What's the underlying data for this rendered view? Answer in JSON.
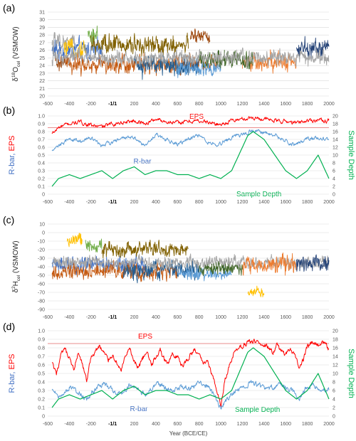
{
  "chart_data": [
    {
      "type": "line",
      "panel_label": "(a)",
      "ylabel": "δ18Ocel (VSMOW)",
      "ylabel_parts": {
        "delta": "δ",
        "sup": "18",
        "main": "O",
        "sub": "cel",
        "unit": " (VSMOW)"
      },
      "ylim": [
        20,
        31
      ],
      "yticks": [
        "20",
        "21",
        "22",
        "23",
        "24",
        "25",
        "26",
        "27",
        "28",
        "29",
        "30",
        "31"
      ],
      "xlim": [
        -600,
        2000
      ],
      "xtick_labels": [
        "-600",
        "-400",
        "-200",
        "-1/1",
        "200",
        "400",
        "600",
        "800",
        "1000",
        "1200",
        "1400",
        "1600",
        "1800",
        "2000"
      ],
      "grid": true,
      "series": [
        {
          "color": "#4472c4",
          "x": [
            -560,
            -100
          ],
          "y_mean": 26.0,
          "y_amp": 1.7
        },
        {
          "color": "#a5a5a5",
          "x": [
            -560,
            -350
          ],
          "y_mean": 27.0,
          "y_amp": 1.5
        },
        {
          "color": "#ffc000",
          "x": [
            -450,
            -250
          ],
          "y_mean": 26.2,
          "y_amp": 1.4
        },
        {
          "color": "#9e480e",
          "x": [
            -530,
            -400
          ],
          "y_mean": 24.3,
          "y_amp": 1.2
        },
        {
          "color": "#70ad47",
          "x": [
            -230,
            -140
          ],
          "y_mean": 28.0,
          "y_amp": 1.6
        },
        {
          "color": "#c55a11",
          "x": [
            -430,
            1000
          ],
          "y_mean": 24.2,
          "y_amp": 1.5
        },
        {
          "color": "#806000",
          "x": [
            -200,
            700
          ],
          "y_mean": 26.6,
          "y_amp": 1.6
        },
        {
          "color": "#255e91",
          "x": [
            200,
            800
          ],
          "y_mean": 24.0,
          "y_amp": 1.7
        },
        {
          "color": "#5b9bd5",
          "x": [
            600,
            1000
          ],
          "y_mean": 23.7,
          "y_amp": 1.3
        },
        {
          "color": "#9e480e",
          "x": [
            720,
            900
          ],
          "y_mean": 28.0,
          "y_amp": 1.2
        },
        {
          "color": "#ed7d31",
          "x": [
            1200,
            1700
          ],
          "y_mean": 24.5,
          "y_amp": 1.4
        },
        {
          "color": "#264478",
          "x": [
            1700,
            2000
          ],
          "y_mean": 26.2,
          "y_amp": 1.6
        },
        {
          "color": "#43682b",
          "x": [
            800,
            1300
          ],
          "y_mean": 24.7,
          "y_amp": 1.5
        },
        {
          "color": "#a5a5a5",
          "x": [
            -560,
            2000
          ],
          "y_mean": 25.0,
          "y_amp": 1.2
        }
      ]
    },
    {
      "type": "line",
      "panel_label": "(b)",
      "ylabel_left_parts": [
        "R-bar",
        ", ",
        "EPS"
      ],
      "ylabel_right": "Sample Depth",
      "ylim_left": [
        0,
        1
      ],
      "ylim_right": [
        0,
        20
      ],
      "yticks_left": [
        "0",
        "0.1",
        "0.2",
        "0.3",
        "0.4",
        "0.5",
        "0.6",
        "0.7",
        "0.8",
        "0.9",
        "1.0"
      ],
      "yticks_right": [
        "0",
        "2",
        "4",
        "6",
        "8",
        "10",
        "12",
        "14",
        "16",
        "18",
        "20"
      ],
      "xlim": [
        -600,
        2000
      ],
      "xtick_labels": [
        "-600",
        "-400",
        "-200",
        "-1/1",
        "200",
        "400",
        "600",
        "800",
        "1000",
        "1200",
        "1400",
        "1600",
        "1800",
        "2000"
      ],
      "threshold": 0.85,
      "annotations": [
        "EPS",
        "R-bar",
        "Sample Depth"
      ],
      "series": [
        {
          "name": "EPS",
          "color": "#ff0000",
          "axis": "left",
          "x": [
            -560,
            -500,
            -400,
            -300,
            -200,
            -100,
            0,
            100,
            200,
            300,
            400,
            500,
            600,
            700,
            800,
            900,
            1000,
            1100,
            1200,
            1300,
            1400,
            1500,
            1600,
            1700,
            1800,
            1900,
            2000
          ],
          "y": [
            0.77,
            0.85,
            0.9,
            0.92,
            0.88,
            0.86,
            0.9,
            0.92,
            0.94,
            0.9,
            0.96,
            0.93,
            0.91,
            0.93,
            0.94,
            0.91,
            0.89,
            0.94,
            0.96,
            0.98,
            0.96,
            0.94,
            0.93,
            0.91,
            0.94,
            0.95,
            0.94
          ]
        },
        {
          "name": "R-bar",
          "color": "#5b9bd5",
          "axis": "left",
          "x": [
            -560,
            -500,
            -400,
            -300,
            -200,
            -100,
            0,
            100,
            200,
            300,
            400,
            500,
            600,
            700,
            800,
            900,
            1000,
            1100,
            1200,
            1300,
            1400,
            1500,
            1600,
            1700,
            1800,
            1900,
            2000
          ],
          "y": [
            0.55,
            0.62,
            0.7,
            0.68,
            0.72,
            0.62,
            0.66,
            0.73,
            0.72,
            0.61,
            0.76,
            0.7,
            0.64,
            0.71,
            0.74,
            0.65,
            0.64,
            0.72,
            0.76,
            0.82,
            0.79,
            0.76,
            0.68,
            0.63,
            0.72,
            0.72,
            0.7
          ]
        },
        {
          "name": "Sample Depth",
          "color": "#00b050",
          "axis": "right",
          "x": [
            -560,
            -500,
            -400,
            -300,
            -200,
            -100,
            0,
            100,
            200,
            300,
            400,
            500,
            600,
            700,
            800,
            900,
            1000,
            1100,
            1200,
            1250,
            1300,
            1400,
            1500,
            1600,
            1700,
            1800,
            1900,
            2000
          ],
          "y": [
            2,
            4,
            5,
            4,
            5,
            6,
            4,
            6,
            7,
            5,
            6,
            6,
            5,
            5,
            4,
            5,
            4,
            6,
            12,
            15,
            16,
            14,
            10,
            6,
            4,
            6,
            10,
            4
          ]
        }
      ]
    },
    {
      "type": "line",
      "panel_label": "(c)",
      "ylabel_parts": {
        "delta": "δ",
        "sup": "2",
        "main": "H",
        "sub": "cel",
        "unit": " (VSMOW)"
      },
      "ylim": [
        -90,
        10
      ],
      "yticks": [
        "-90",
        "-80",
        "-70",
        "-60",
        "-50",
        "-40",
        "-30",
        "-20",
        "-10",
        "0",
        "10"
      ],
      "xlim": [
        -600,
        2000
      ],
      "xtick_labels": [
        "-600",
        "-400",
        "-200",
        "-1/1",
        "200",
        "400",
        "600",
        "800",
        "1000",
        "1200",
        "1400",
        "1600",
        "1800",
        "2000"
      ],
      "grid": true,
      "series": [
        {
          "color": "#4472c4",
          "x": [
            -560,
            300
          ],
          "y_mean": -38,
          "y_amp": 12
        },
        {
          "color": "#ffc000",
          "x": [
            -420,
            -280
          ],
          "y_mean": -10,
          "y_amp": 10
        },
        {
          "color": "#70ad47",
          "x": [
            -250,
            -100
          ],
          "y_mean": -15,
          "y_amp": 9
        },
        {
          "color": "#c55a11",
          "x": [
            -560,
            600
          ],
          "y_mean": -45,
          "y_amp": 12
        },
        {
          "color": "#806000",
          "x": [
            -100,
            700
          ],
          "y_mean": -20,
          "y_amp": 10
        },
        {
          "color": "#255e91",
          "x": [
            100,
            800
          ],
          "y_mean": -45,
          "y_amp": 13
        },
        {
          "color": "#5b9bd5",
          "x": [
            600,
            1100
          ],
          "y_mean": -48,
          "y_amp": 10
        },
        {
          "color": "#a5a5a5",
          "x": [
            -560,
            2000
          ],
          "y_mean": -35,
          "y_amp": 9
        },
        {
          "color": "#ffc000",
          "x": [
            1250,
            1400
          ],
          "y_mean": -70,
          "y_amp": 8
        },
        {
          "color": "#ed7d31",
          "x": [
            1200,
            1700
          ],
          "y_mean": -38,
          "y_amp": 12
        },
        {
          "color": "#43682b",
          "x": [
            800,
            1200
          ],
          "y_mean": -42,
          "y_amp": 9
        },
        {
          "color": "#264478",
          "x": [
            1700,
            2000
          ],
          "y_mean": -35,
          "y_amp": 12
        }
      ]
    },
    {
      "type": "line",
      "panel_label": "(d)",
      "ylabel_left_parts": [
        "R-bar",
        ", ",
        "EPS"
      ],
      "ylabel_right": "Sample Depth",
      "xlabel": "Year (BCE/CE)",
      "ylim_left": [
        0,
        1
      ],
      "ylim_right": [
        0,
        20
      ],
      "yticks_left": [
        "0",
        "0.1",
        "0.2",
        "0.3",
        "0.4",
        "0.5",
        "0.6",
        "0.7",
        "0.8",
        "0.9",
        "1.0"
      ],
      "yticks_right": [
        "0",
        "2",
        "4",
        "6",
        "8",
        "10",
        "12",
        "14",
        "16",
        "18",
        "20"
      ],
      "xlim": [
        -600,
        2000
      ],
      "xtick_labels": [
        "-600",
        "-400",
        "-200",
        "-1/1",
        "200",
        "400",
        "600",
        "800",
        "1000",
        "1200",
        "1400",
        "1600",
        "1800",
        "2000"
      ],
      "threshold": 0.85,
      "annotations": [
        "EPS",
        "R-bar",
        "Sample Depth"
      ],
      "series": [
        {
          "name": "EPS",
          "color": "#ff0000",
          "axis": "left",
          "x": [
            -560,
            -520,
            -480,
            -440,
            -400,
            -360,
            -320,
            -280,
            -240,
            -200,
            -160,
            -120,
            -80,
            -40,
            0,
            40,
            80,
            120,
            160,
            200,
            240,
            280,
            320,
            360,
            400,
            440,
            480,
            520,
            560,
            600,
            640,
            680,
            720,
            760,
            800,
            840,
            880,
            920,
            960,
            1000,
            1040,
            1080,
            1120,
            1160,
            1200,
            1240,
            1280,
            1320,
            1360,
            1400,
            1440,
            1480,
            1520,
            1560,
            1600,
            1640,
            1680,
            1720,
            1760,
            1800,
            1840,
            1880,
            1920,
            1960,
            2000
          ],
          "y": [
            0.62,
            0.48,
            0.7,
            0.78,
            0.66,
            0.55,
            0.72,
            0.6,
            0.42,
            0.68,
            0.76,
            0.82,
            0.74,
            0.66,
            0.72,
            0.62,
            0.54,
            0.7,
            0.78,
            0.64,
            0.56,
            0.68,
            0.74,
            0.6,
            0.7,
            0.78,
            0.66,
            0.62,
            0.74,
            0.7,
            0.58,
            0.64,
            0.72,
            0.78,
            0.7,
            0.62,
            0.66,
            0.48,
            0.32,
            0.14,
            0.42,
            0.58,
            0.72,
            0.78,
            0.82,
            0.86,
            0.88,
            0.86,
            0.88,
            0.84,
            0.8,
            0.74,
            0.82,
            0.76,
            0.72,
            0.8,
            0.74,
            0.58,
            0.66,
            0.8,
            0.86,
            0.84,
            0.82,
            0.86,
            0.78
          ]
        },
        {
          "name": "R-bar",
          "color": "#5b9bd5",
          "axis": "left",
          "x": [
            -560,
            -480,
            -400,
            -320,
            -240,
            -160,
            -80,
            0,
            80,
            160,
            240,
            320,
            400,
            480,
            560,
            640,
            720,
            800,
            880,
            960,
            1000,
            1040,
            1120,
            1200,
            1280,
            1360,
            1440,
            1520,
            1600,
            1680,
            1720,
            1760,
            1840,
            1920,
            2000
          ],
          "y": [
            0.3,
            0.22,
            0.34,
            0.28,
            0.2,
            0.32,
            0.38,
            0.3,
            0.26,
            0.36,
            0.3,
            0.26,
            0.38,
            0.34,
            0.28,
            0.36,
            0.32,
            0.4,
            0.34,
            0.2,
            0.1,
            0.18,
            0.26,
            0.34,
            0.4,
            0.36,
            0.3,
            0.38,
            0.34,
            0.28,
            0.18,
            0.3,
            0.36,
            0.34,
            0.3
          ]
        },
        {
          "name": "Sample Depth",
          "color": "#00b050",
          "axis": "right",
          "x": [
            -560,
            -500,
            -400,
            -300,
            -200,
            -100,
            0,
            100,
            200,
            300,
            400,
            500,
            600,
            700,
            800,
            900,
            1000,
            1100,
            1200,
            1250,
            1300,
            1400,
            1500,
            1600,
            1700,
            1800,
            1900,
            2000
          ],
          "y": [
            2,
            4,
            5,
            4,
            5,
            6,
            4,
            6,
            7,
            5,
            6,
            6,
            5,
            5,
            4,
            5,
            4,
            6,
            12,
            15,
            16,
            14,
            10,
            6,
            4,
            6,
            10,
            4
          ]
        }
      ]
    }
  ]
}
